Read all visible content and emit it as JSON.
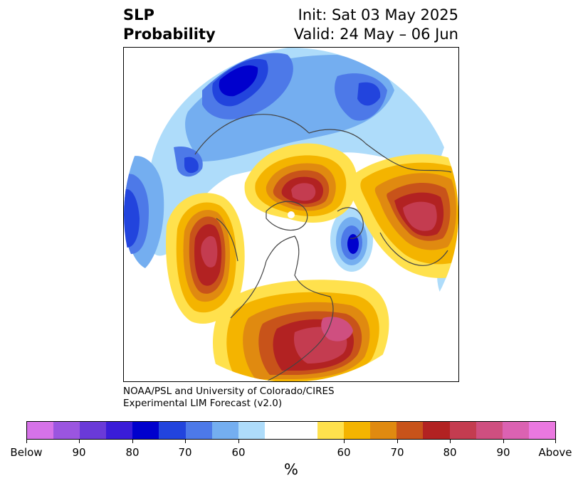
{
  "title": {
    "left_line1": "SLP",
    "left_line2": "Probability",
    "right_line1": "Init: Sat 03 May 2025",
    "right_line2": "Valid: 24 May – 06 Jun"
  },
  "credit": {
    "line1": "NOAA/PSL and University of Colorado/CIRES",
    "line2": "Experimental LIM Forecast (v2.0)"
  },
  "colorbar": {
    "colors": [
      "#d672e8",
      "#9b55e0",
      "#6a3ad8",
      "#3a1cd8",
      "#0000cd",
      "#2244dd",
      "#4d79e8",
      "#74aef0",
      "#aedcfa",
      "#ffffff",
      "#ffffff",
      "#ffe14d",
      "#f4b400",
      "#e08a10",
      "#c8531a",
      "#b22222",
      "#c43c50",
      "#cf4f80",
      "#db62b2",
      "#ea78e0"
    ],
    "ticks": [
      {
        "label": "Below",
        "index": 0
      },
      {
        "label": "90",
        "index": 2
      },
      {
        "label": "80",
        "index": 4
      },
      {
        "label": "70",
        "index": 6
      },
      {
        "label": "60",
        "index": 8
      },
      {
        "label": "60",
        "index": 12
      },
      {
        "label": "70",
        "index": 14
      },
      {
        "label": "80",
        "index": 16
      },
      {
        "label": "90",
        "index": 18
      },
      {
        "label": "Above",
        "index": 20
      }
    ],
    "unit_label": "%"
  }
}
